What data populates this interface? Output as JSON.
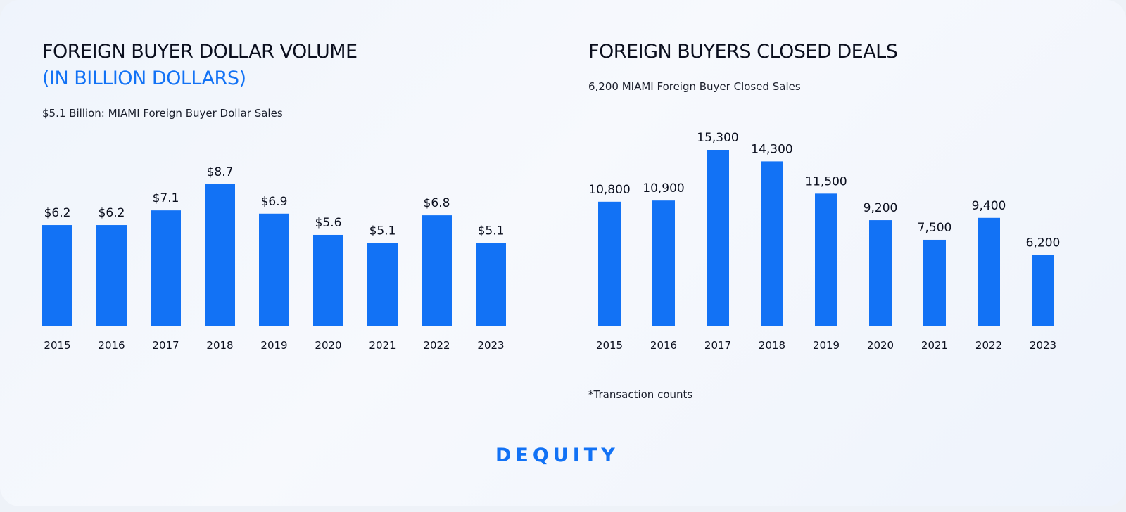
{
  "colors": {
    "accent": "#1272f5",
    "bar": "#1272f5",
    "text": "#0b0f1e"
  },
  "left": {
    "title": "FOREIGN BUYER DOLLAR VOLUME",
    "title_accent": "(IN BILLION DOLLARS)",
    "subtitle": "$5.1 Billion: MIAMI Foreign Buyer Dollar Sales"
  },
  "right": {
    "title": "FOREIGN BUYERS CLOSED DEALS",
    "subtitle": "6,200 MIAMI Foreign Buyer Closed Sales",
    "note": "*Transaction counts"
  },
  "brand": {
    "logo_text": "DEQUITY"
  },
  "chart_data": [
    {
      "type": "bar",
      "title": "FOREIGN BUYER DOLLAR VOLUME (IN BILLION DOLLARS)",
      "categories": [
        "2015",
        "2016",
        "2017",
        "2018",
        "2019",
        "2020",
        "2021",
        "2022",
        "2023"
      ],
      "values": [
        6.2,
        6.2,
        7.1,
        8.7,
        6.9,
        5.6,
        5.1,
        6.8,
        5.1
      ],
      "data_labels": [
        "$6.2",
        "$6.2",
        "$7.1",
        "$8.7",
        "$6.9",
        "$5.6",
        "$5.1",
        "$6.8",
        "$5.1"
      ],
      "xlabel": "",
      "ylabel": "",
      "ylim": [
        0,
        8.7
      ],
      "grid": false,
      "legend": "none"
    },
    {
      "type": "bar",
      "title": "FOREIGN BUYERS CLOSED DEALS",
      "categories": [
        "2015",
        "2016",
        "2017",
        "2018",
        "2019",
        "2020",
        "2021",
        "2022",
        "2023"
      ],
      "values": [
        10800,
        10900,
        15300,
        14300,
        11500,
        9200,
        7500,
        9400,
        6200
      ],
      "data_labels": [
        "10,800",
        "10,900",
        "15,300",
        "14,300",
        "11,500",
        "9,200",
        "7,500",
        "9,400",
        "6,200"
      ],
      "xlabel": "",
      "ylabel": "",
      "ylim": [
        0,
        15300
      ],
      "grid": false,
      "legend": "none"
    }
  ]
}
